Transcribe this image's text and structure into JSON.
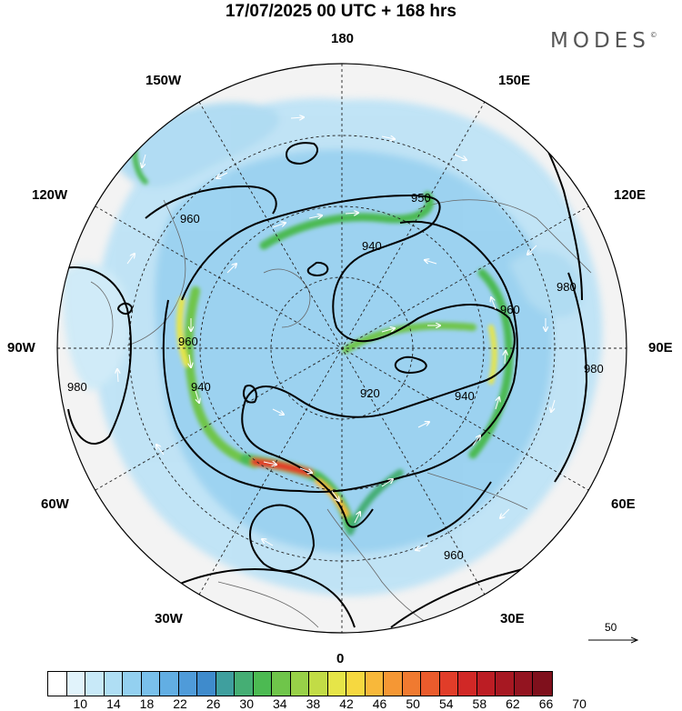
{
  "title": "17/07/2025  00 UTC  + 168 hrs",
  "logo": "MODES",
  "logo_mark": "©",
  "longitude_labels": {
    "top": "180",
    "bottom": "0",
    "left": "90W",
    "right": "90E",
    "upper_left_1": "150W",
    "upper_left_2": "120W",
    "upper_right_1": "150E",
    "upper_right_2": "120E",
    "lower_left_1": "60W",
    "lower_left_2": "30W",
    "lower_right_1": "60E",
    "lower_right_2": "30E"
  },
  "contour_labels": [
    "920",
    "940",
    "940",
    "950",
    "960",
    "960",
    "960",
    "980",
    "980",
    "980",
    "960",
    "940"
  ],
  "wind_scale": {
    "value": "50"
  },
  "colorbar": {
    "labels": [
      "10",
      "14",
      "18",
      "22",
      "26",
      "30",
      "34",
      "38",
      "42",
      "46",
      "50",
      "54",
      "58",
      "62",
      "66",
      "70"
    ],
    "colors": [
      "#ffffff",
      "#e1f3fb",
      "#c8e9f8",
      "#afdef4",
      "#93d0f0",
      "#79c0eb",
      "#62aee3",
      "#4f9bd9",
      "#3f8bcc",
      "#3f9f9e",
      "#45ae74",
      "#4cba52",
      "#6fc54a",
      "#98d148",
      "#c2dc46",
      "#e6e548",
      "#f6d840",
      "#f8b83a",
      "#f59734",
      "#f07a30",
      "#ea5b2c",
      "#e13d29",
      "#d12826",
      "#bc1d24",
      "#a71822",
      "#931420",
      "#7f101c"
    ]
  }
}
